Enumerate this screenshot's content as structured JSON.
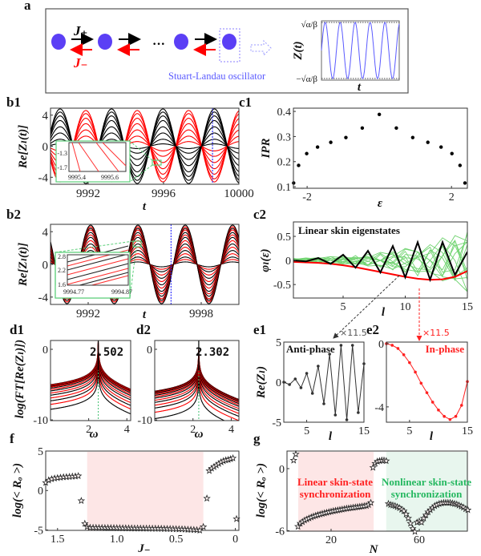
{
  "figure": {
    "panel_labels": {
      "a": "a",
      "b1": "b1",
      "b2": "b2",
      "c1": "c1",
      "c2": "c2",
      "d1": "d1",
      "d2": "d2",
      "e1": "e1",
      "e2": "e2",
      "f": "f",
      "g": "g"
    },
    "schematic": {
      "j_plus": "J₊",
      "j_minus": "J₋",
      "ellipsis": "···",
      "oscillator_label": "Stuart-Landau oscillator",
      "z_axis_label": "Z(t)",
      "t_axis_label": "t",
      "amp_top": "√α/β",
      "amp_bottom": "−√α/β",
      "node_color": "#5b3ff5",
      "forward_color": "#000000",
      "backward_color": "#ff0000",
      "wave_color": "#5a5aff"
    },
    "connectors": {
      "e1_scale": "×11.5",
      "e2_scale": "×11.5"
    }
  },
  "chart_data": [
    {
      "panel": "b1",
      "type": "line",
      "xlabel": "t",
      "ylabel": "Re[Zₗ(t)]",
      "xlim": [
        9990,
        10000
      ],
      "ylim": [
        -4.9,
        4.9
      ],
      "xticks": [
        9992,
        9996,
        10000
      ],
      "xtick_labels": [
        "9992",
        "9996",
        "10000"
      ],
      "yticks": [
        4,
        0,
        -4
      ],
      "ytick_labels": [
        "4",
        "0",
        "-4"
      ],
      "omega": 2.302,
      "peak_time": 9990.51,
      "phase_relation": "anti-phase",
      "amplitudes": [
        0.3,
        0.6,
        0.9,
        1.3,
        1.7,
        2.1,
        2.5,
        2.9,
        3.3,
        3.6,
        3.9,
        4.2,
        4.4,
        4.6,
        4.8
      ],
      "colors": [
        "#000000",
        "#ff0000"
      ],
      "marker_line": {
        "x": 9998.6,
        "color": "#3333ff"
      },
      "inset": {
        "xtick_labels": [
          "9995.4",
          "9995.6"
        ],
        "ytick_labels": [
          "-1.3",
          "-1.7"
        ],
        "color": "#5ccf7a"
      }
    },
    {
      "panel": "b2",
      "type": "line",
      "xlabel": "t",
      "ylabel": "Re[Zₗ(t)]",
      "xlim": [
        9990,
        10000
      ],
      "ylim": [
        -4.9,
        4.9
      ],
      "xticks": [
        9992,
        9998
      ],
      "xtick_labels": [
        "9992",
        "9998"
      ],
      "yticks": [
        4,
        0,
        -4
      ],
      "ytick_labels": [
        "4",
        "0",
        "-4"
      ],
      "omega": 2.502,
      "peak_time": 9992.13,
      "phase_relation": "in-phase",
      "amplitudes": [
        0.3,
        0.6,
        0.9,
        1.3,
        1.7,
        2.1,
        2.5,
        2.9,
        3.3,
        3.6,
        3.9,
        4.2,
        4.4,
        4.6,
        4.8
      ],
      "colors": [
        "#000000",
        "#ff0000"
      ],
      "marker_line": {
        "x": 9996.4,
        "color": "#3333ff"
      },
      "inset": {
        "xtick_labels": [
          "9994.77",
          "9994.87"
        ],
        "ytick_labels": [
          "2.8",
          "2.2",
          "1.6"
        ],
        "color": "#5ccf7a"
      }
    },
    {
      "panel": "c1",
      "type": "scatter",
      "xlabel": "ε",
      "ylabel": "IPR",
      "xlim": [
        -2.38,
        2.44
      ],
      "ylim": [
        0.094,
        0.413
      ],
      "xticks": [
        -2,
        2
      ],
      "xtick_labels": [
        "-2",
        "2"
      ],
      "yticks": [
        0.4,
        0.3,
        0.2,
        0.1
      ],
      "ytick_labels": [
        "0.4",
        "0.3",
        "0.2",
        "0.1"
      ],
      "x": [
        -2.373,
        -2.236,
        -2.012,
        -1.711,
        -1.345,
        -0.926,
        -0.472,
        0,
        0.472,
        0.926,
        1.345,
        1.711,
        2.012,
        2.236,
        2.373
      ],
      "y": [
        0.115,
        0.185,
        0.232,
        0.258,
        0.277,
        0.296,
        0.334,
        0.388,
        0.334,
        0.296,
        0.277,
        0.258,
        0.232,
        0.185,
        0.115
      ]
    },
    {
      "panel": "c2",
      "type": "line",
      "xlabel": "l",
      "ylabel": "φₗ(ε)",
      "title": "Linear skin eigenstates",
      "xlim": [
        1,
        15
      ],
      "ylim": [
        -0.78,
        0.8
      ],
      "xticks": [
        5,
        10,
        15
      ],
      "xtick_labels": [
        "5",
        "10",
        "15"
      ],
      "yticks": [
        0.5,
        0,
        -0.5
      ],
      "ytick_labels": [
        "0.5",
        "0",
        "-0.5"
      ],
      "l": [
        1,
        2,
        3,
        4,
        5,
        6,
        7,
        8,
        9,
        10,
        11,
        12,
        13,
        14,
        15
      ],
      "anti_phase_state": {
        "color": "#000000",
        "values": [
          0,
          -0.02,
          0.05,
          -0.07,
          0.12,
          -0.15,
          0.2,
          -0.25,
          0.3,
          -0.35,
          0.38,
          -0.4,
          0.38,
          -0.3,
          0.18
        ]
      },
      "in_phase_state": {
        "color": "#ff0000",
        "values": [
          -0.03,
          -0.04,
          -0.05,
          -0.07,
          -0.1,
          -0.14,
          -0.19,
          -0.24,
          -0.29,
          -0.34,
          -0.38,
          -0.4,
          -0.39,
          -0.34,
          -0.22
        ]
      },
      "other_states_color": "#6fd36f"
    },
    {
      "panel": "d1",
      "type": "line",
      "xlabel": "ω",
      "ylabel": "log(FT[Re(Zₗ)])",
      "xlim": [
        0,
        4.2
      ],
      "ylim": [
        -10.1,
        1.25
      ],
      "xticks": [
        2,
        4
      ],
      "xtick_labels": [
        "2",
        "4"
      ],
      "yticks": [
        0,
        -10
      ],
      "ytick_labels": [
        "0",
        "-10"
      ],
      "peak_omega": 2.502,
      "peak_label": "2.502",
      "levels": [
        -5.0,
        -5.05,
        -5.1,
        -5.15,
        -5.25,
        -5.35,
        -5.5,
        -5.7,
        -5.9,
        -6.2,
        -6.5,
        -6.9,
        -7.3,
        -7.8,
        -8.5
      ],
      "colors": [
        "#000000",
        "#ff0000"
      ],
      "peak_line_color": "#3fbf6f"
    },
    {
      "panel": "d2",
      "type": "line",
      "xlabel": "ω",
      "ylabel": "",
      "xlim": [
        0,
        4.4
      ],
      "ylim": [
        -10.1,
        1.25
      ],
      "xticks": [
        2,
        4
      ],
      "xtick_labels": [
        "2",
        "4"
      ],
      "yticks": [
        0,
        -10
      ],
      "ytick_labels": [
        "0",
        "-10"
      ],
      "peak_omega": 2.302,
      "peak_label": "2.302",
      "levels": [
        -6.0,
        -6.05,
        -6.1,
        -6.2,
        -6.3,
        -6.45,
        -6.6,
        -6.8,
        -7.0,
        -7.3,
        -7.6,
        -8.0,
        -8.4,
        -9.0,
        -9.9
      ],
      "colors": [
        "#000000",
        "#ff0000"
      ],
      "peak_line_color": "#3fbf6f"
    },
    {
      "panel": "e1",
      "type": "line",
      "xlabel": "l",
      "ylabel": "Re(Zₗ)",
      "title": "Anti-phase",
      "xlim": [
        1,
        15
      ],
      "ylim": [
        -5,
        5
      ],
      "xticks": [
        5,
        15
      ],
      "xtick_labels": [
        "5",
        "15"
      ],
      "yticks": [
        5,
        0,
        -5
      ],
      "ytick_labels": [
        "5",
        "0",
        "-5"
      ],
      "l": [
        1,
        2,
        3,
        4,
        5,
        6,
        7,
        8,
        9,
        10,
        11,
        12,
        13,
        14,
        15
      ],
      "values": [
        0,
        -0.3,
        0.4,
        -0.7,
        1.1,
        -1.4,
        2.0,
        -2.7,
        3.5,
        -4.1,
        4.6,
        -4.7,
        4.6,
        -3.8,
        2.3
      ],
      "color": "#333333"
    },
    {
      "panel": "e2",
      "type": "line",
      "xlabel": "l",
      "ylabel": "",
      "title": "In-phase",
      "xlim": [
        1,
        15
      ],
      "ylim": [
        -4.97,
        0.1
      ],
      "xticks": [
        5,
        15
      ],
      "xtick_labels": [
        "5",
        "15"
      ],
      "yticks": [
        0,
        -4
      ],
      "ytick_labels": [
        "0",
        "-4"
      ],
      "l": [
        1,
        2,
        3,
        4,
        5,
        6,
        7,
        8,
        9,
        10,
        11,
        12,
        13,
        14,
        15
      ],
      "values": [
        0,
        -0.1,
        -0.3,
        -0.7,
        -1.2,
        -1.8,
        -2.5,
        -3.1,
        -3.7,
        -4.2,
        -4.6,
        -4.8,
        -4.6,
        -3.9,
        -2.4
      ],
      "color": "#ff2020"
    },
    {
      "panel": "f",
      "type": "scatter",
      "xlabel": "J₋",
      "ylabel": "log(< Rₒ >)",
      "xlim": [
        1.6,
        -0.03
      ],
      "ylim": [
        -5.05,
        5
      ],
      "xticks": [
        1.5,
        1.0,
        0.5,
        0
      ],
      "xtick_labels": [
        "1.5",
        "1.0",
        "0.5",
        "0"
      ],
      "yticks": [
        5,
        0,
        -5
      ],
      "ytick_labels": [
        "5",
        "0",
        "-5"
      ],
      "shaded_regions": [
        {
          "x": [
            1.25,
            0.27
          ],
          "color": "#fde6e6"
        }
      ],
      "points": [
        [
          1.6,
          1.0
        ],
        [
          1.575,
          1.3
        ],
        [
          1.55,
          1.45
        ],
        [
          1.525,
          1.55
        ],
        [
          1.5,
          1.6
        ],
        [
          1.475,
          1.65
        ],
        [
          1.45,
          1.7
        ],
        [
          1.425,
          1.72
        ],
        [
          1.4,
          1.75
        ],
        [
          1.375,
          1.78
        ],
        [
          1.35,
          1.8
        ],
        [
          1.325,
          1.85
        ],
        [
          1.3,
          -1.3
        ],
        [
          1.27,
          -4.2
        ],
        [
          1.25,
          -4.6
        ],
        [
          1.225,
          -4.7
        ],
        [
          1.2,
          -4.72
        ],
        [
          1.175,
          -4.72
        ],
        [
          1.15,
          -4.73
        ],
        [
          1.125,
          -4.73
        ],
        [
          1.1,
          -4.74
        ],
        [
          1.075,
          -4.74
        ],
        [
          1.05,
          -4.75
        ],
        [
          1.025,
          -4.75
        ],
        [
          1.0,
          -4.76
        ],
        [
          0.975,
          -4.76
        ],
        [
          0.95,
          -4.77
        ],
        [
          0.925,
          -4.77
        ],
        [
          0.9,
          -4.78
        ],
        [
          0.875,
          -4.78
        ],
        [
          0.85,
          -4.79
        ],
        [
          0.825,
          -4.79
        ],
        [
          0.8,
          -4.8
        ],
        [
          0.775,
          -4.8
        ],
        [
          0.75,
          -4.81
        ],
        [
          0.725,
          -4.81
        ],
        [
          0.7,
          -4.82
        ],
        [
          0.675,
          -4.82
        ],
        [
          0.65,
          -4.83
        ],
        [
          0.625,
          -4.83
        ],
        [
          0.6,
          -4.84
        ],
        [
          0.575,
          -4.85
        ],
        [
          0.55,
          -4.86
        ],
        [
          0.525,
          -4.87
        ],
        [
          0.5,
          -4.88
        ],
        [
          0.475,
          -4.89
        ],
        [
          0.45,
          -4.9
        ],
        [
          0.425,
          -4.92
        ],
        [
          0.4,
          -4.94
        ],
        [
          0.375,
          -4.96
        ],
        [
          0.35,
          -4.98
        ],
        [
          0.325,
          -5.0
        ],
        [
          0.3,
          -5.05
        ],
        [
          0.27,
          -4.6
        ],
        [
          0.24,
          -1.0
        ],
        [
          0.22,
          2.5
        ],
        [
          0.2,
          2.8
        ],
        [
          0.18,
          3.0
        ],
        [
          0.16,
          3.2
        ],
        [
          0.14,
          3.4
        ],
        [
          0.12,
          3.6
        ],
        [
          0.1,
          3.75
        ],
        [
          0.08,
          3.85
        ],
        [
          0.06,
          3.9
        ],
        [
          0.04,
          4.0
        ],
        [
          0.02,
          4.1
        ],
        [
          -0.01,
          -3.6
        ]
      ]
    },
    {
      "panel": "g",
      "type": "scatter",
      "xlabel": "N",
      "ylabel": "log(< Rₒ >)",
      "xlim": [
        0,
        81.8
      ],
      "ylim": [
        -6.05,
        1.7
      ],
      "xticks": [
        20,
        60
      ],
      "xtick_labels": [
        "20",
        "60"
      ],
      "yticks": [
        0,
        -6
      ],
      "ytick_labels": [
        "0",
        "-6"
      ],
      "shaded_regions": [
        {
          "x": [
            5.1,
            39.3
          ],
          "color": "#fde6e6"
        },
        {
          "x": [
            45,
            81.8
          ],
          "color": "#e8f6ee"
        }
      ],
      "annotations": [
        {
          "lines": [
            "Linear skin-state",
            "synchronization"
          ],
          "color": "#ff2020"
        },
        {
          "lines": [
            "Nonlinear skin-state",
            "synchronization"
          ],
          "color": "#25b860"
        }
      ],
      "points": [
        [
          3,
          0.8
        ],
        [
          4,
          1.4
        ],
        [
          5,
          -5.6
        ],
        [
          6,
          -5.3
        ],
        [
          7,
          -5.15
        ],
        [
          8,
          -5.0
        ],
        [
          9,
          -4.9
        ],
        [
          10,
          -4.8
        ],
        [
          11,
          -4.7
        ],
        [
          12,
          -4.62
        ],
        [
          13,
          -4.55
        ],
        [
          14,
          -4.48
        ],
        [
          15,
          -4.42
        ],
        [
          16,
          -4.36
        ],
        [
          17,
          -4.3
        ],
        [
          18,
          -4.25
        ],
        [
          19,
          -4.2
        ],
        [
          20,
          -4.15
        ],
        [
          21,
          -4.1
        ],
        [
          22,
          -4.06
        ],
        [
          23,
          -4.02
        ],
        [
          24,
          -3.98
        ],
        [
          25,
          -3.94
        ],
        [
          26,
          -3.9
        ],
        [
          27,
          -3.86
        ],
        [
          28,
          -3.83
        ],
        [
          29,
          -3.8
        ],
        [
          30,
          -3.77
        ],
        [
          31,
          -3.74
        ],
        [
          32,
          -3.71
        ],
        [
          33,
          -3.68
        ],
        [
          34,
          -3.65
        ],
        [
          35,
          -3.62
        ],
        [
          36,
          -3.59
        ],
        [
          37,
          -3.5
        ],
        [
          38,
          -3.3
        ],
        [
          39,
          0.1
        ],
        [
          40,
          0.5
        ],
        [
          41,
          0.7
        ],
        [
          42,
          0.75
        ],
        [
          43,
          0.8
        ],
        [
          44,
          0.8
        ],
        [
          45,
          0.75
        ],
        [
          46,
          -3.4
        ],
        [
          47,
          -3.5
        ],
        [
          48,
          -3.55
        ],
        [
          49,
          -3.6
        ],
        [
          50,
          -3.7
        ],
        [
          51,
          -3.8
        ],
        [
          52,
          -3.95
        ],
        [
          53,
          -4.1
        ],
        [
          54,
          -4.4
        ],
        [
          55,
          -4.8
        ],
        [
          56,
          -5.3
        ],
        [
          57,
          -5.8
        ],
        [
          58,
          -6.1
        ],
        [
          59,
          -5.2
        ],
        [
          60,
          -5.1
        ],
        [
          61,
          -5.2
        ],
        [
          62,
          -4.8
        ],
        [
          63,
          -4.5
        ],
        [
          64,
          -4.2
        ],
        [
          65,
          -4.0
        ],
        [
          66,
          -3.8
        ],
        [
          67,
          -3.6
        ],
        [
          68,
          -3.5
        ],
        [
          69,
          -3.4
        ],
        [
          70,
          -3.35
        ],
        [
          71,
          -3.3
        ],
        [
          72,
          -3.3
        ],
        [
          73,
          -3.3
        ],
        [
          74,
          -3.3
        ],
        [
          75,
          -3.35
        ],
        [
          76,
          -3.4
        ],
        [
          77,
          -3.45
        ],
        [
          78,
          -3.55
        ],
        [
          79,
          -3.65
        ],
        [
          80,
          -3.75
        ],
        [
          81,
          -3.9
        ],
        [
          82,
          -4.0
        ]
      ]
    }
  ]
}
